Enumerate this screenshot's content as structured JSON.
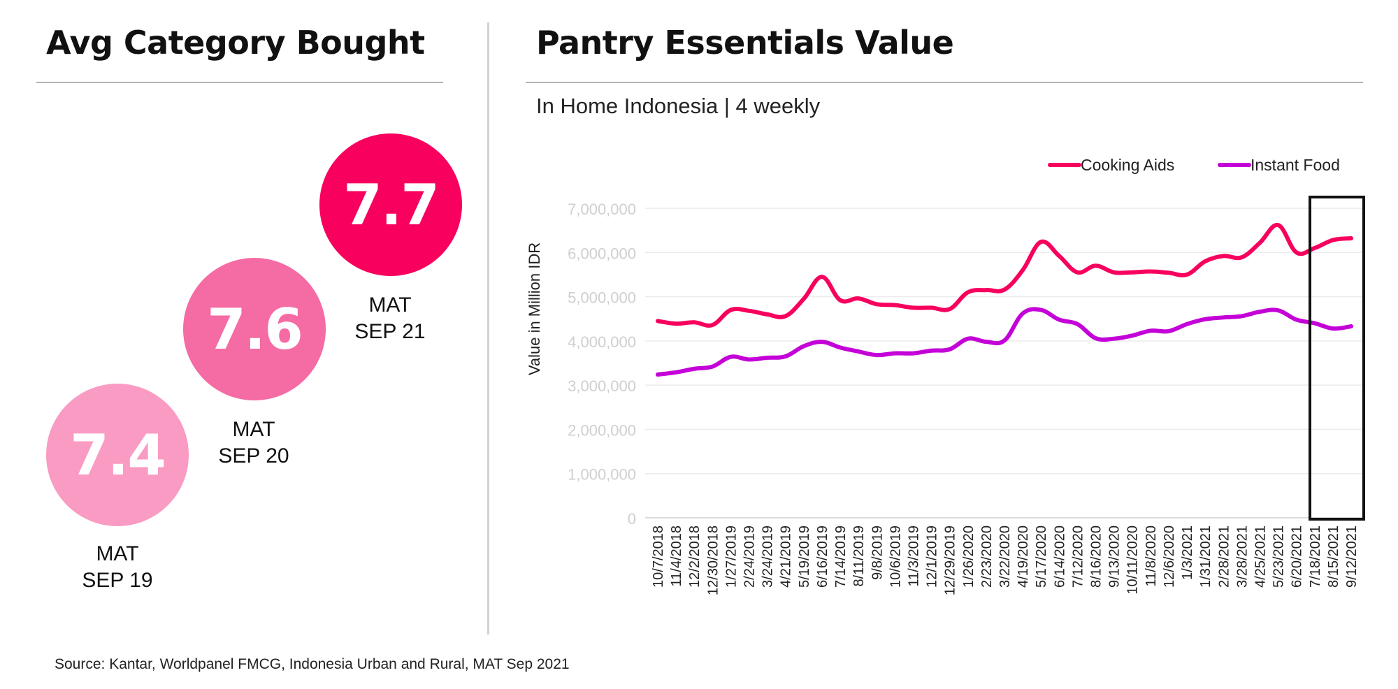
{
  "left_panel": {
    "title": "Avg Category Bought",
    "bubbles": [
      {
        "value": "7.4",
        "label_line1": "MAT",
        "label_line2": "SEP 19",
        "color": "#f99bc2"
      },
      {
        "value": "7.6",
        "label_line1": "MAT",
        "label_line2": "SEP 20",
        "color": "#f56ba3"
      },
      {
        "value": "7.7",
        "label_line1": "MAT",
        "label_line2": "SEP 21",
        "color": "#f7005e"
      }
    ]
  },
  "right_panel": {
    "title": "Pantry Essentials Value",
    "subtitle": "In Home Indonesia | 4 weekly"
  },
  "source": "Source: Kantar, Worldpanel FMCG, Indonesia Urban and Rural, MAT Sep 2021",
  "chart_data": {
    "type": "line",
    "title": "Pantry Essentials Value",
    "ylabel": "Value in Million IDR",
    "xlabel": "",
    "ylim": [
      0,
      7000000
    ],
    "yticks": [
      "0",
      "1,000,000",
      "2,000,000",
      "3,000,000",
      "4,000,000",
      "5,000,000",
      "6,000,000",
      "7,000,000"
    ],
    "ytick_values": [
      0,
      1000000,
      2000000,
      3000000,
      4000000,
      5000000,
      6000000,
      7000000
    ],
    "grid": true,
    "legend_position": "top-right",
    "highlight_box": "last three periods",
    "categories": [
      "10/7/2018",
      "11/4/2018",
      "12/2/2018",
      "12/30/2018",
      "1/27/2019",
      "2/24/2019",
      "3/24/2019",
      "4/21/2019",
      "5/19/2019",
      "6/16/2019",
      "7/14/2019",
      "8/11/2019",
      "9/8/2019",
      "10/6/2019",
      "11/3/2019",
      "12/1/2019",
      "12/29/2019",
      "1/26/2020",
      "2/23/2020",
      "3/22/2020",
      "4/19/2020",
      "5/17/2020",
      "6/14/2020",
      "7/12/2020",
      "8/16/2020",
      "9/13/2020",
      "10/11/2020",
      "11/8/2020",
      "12/6/2020",
      "1/3/2021",
      "1/31/2021",
      "2/28/2021",
      "3/28/2021",
      "4/25/2021",
      "5/23/2021",
      "6/20/2021",
      "7/18/2021",
      "8/15/2021",
      "9/12/2021"
    ],
    "series": [
      {
        "name": "Cooking Aids",
        "color": "#f7005e",
        "values": [
          4450000,
          4390000,
          4420000,
          4360000,
          4700000,
          4680000,
          4600000,
          4560000,
          4950000,
          5450000,
          4920000,
          4960000,
          4830000,
          4810000,
          4750000,
          4750000,
          4720000,
          5100000,
          5150000,
          5160000,
          5600000,
          6240000,
          5920000,
          5550000,
          5700000,
          5550000,
          5550000,
          5570000,
          5540000,
          5500000,
          5800000,
          5920000,
          5890000,
          6220000,
          6620000,
          6000000,
          6100000,
          6280000,
          6320000
        ]
      },
      {
        "name": "Instant Food",
        "color": "#c400d8",
        "values": [
          3240000,
          3290000,
          3370000,
          3420000,
          3640000,
          3580000,
          3620000,
          3650000,
          3880000,
          3980000,
          3850000,
          3760000,
          3680000,
          3720000,
          3720000,
          3780000,
          3810000,
          4050000,
          3980000,
          4010000,
          4620000,
          4700000,
          4480000,
          4380000,
          4060000,
          4050000,
          4120000,
          4230000,
          4220000,
          4380000,
          4490000,
          4530000,
          4560000,
          4660000,
          4690000,
          4480000,
          4400000,
          4280000,
          4330000
        ]
      }
    ]
  }
}
